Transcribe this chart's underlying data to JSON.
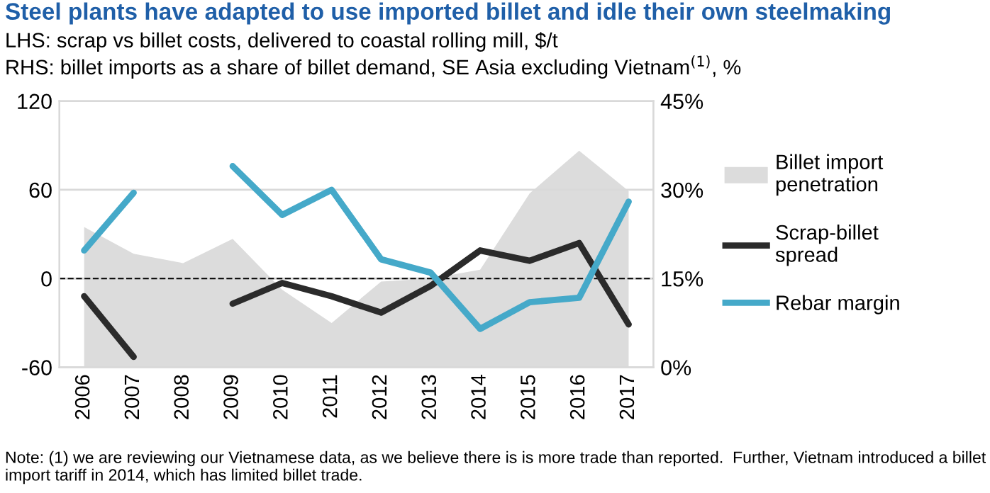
{
  "chart_data": {
    "type": "line",
    "title": "Steel plants have adapted to use imported billet and idle their own steelmaking",
    "subtitle": "LHS: scrap vs billet costs, delivered to coastal rolling mill, $/t\nRHS: billet imports as a share of billet demand, SE Asia excluding Vietnam$^{(1)}$, %",
    "categories": [
      "2006",
      "2007",
      "2008",
      "2009",
      "2010",
      "2011",
      "2012",
      "2013",
      "2014",
      "2015",
      "2016",
      "2017"
    ],
    "series": [
      {
        "name": "Billet import penetration",
        "type": "area",
        "axis": "y2",
        "color": "#dcdcdc",
        "values": [
          23.7,
          19.2,
          17.6,
          21.7,
          13.1,
          7.5,
          14.5,
          15,
          16.5,
          29.4,
          36.6,
          29.8
        ]
      },
      {
        "name": "Scrap-billet spread",
        "color": "#2b2b2b",
        "values": [
          -12,
          -53,
          null,
          -17,
          -3,
          -12,
          -23,
          -5,
          19,
          12,
          24,
          -31
        ]
      },
      {
        "name": "Rebar margin",
        "color": "#45a9c9",
        "values": [
          19,
          58,
          null,
          76,
          43,
          60,
          13,
          4,
          -34,
          -16,
          -13,
          52
        ]
      }
    ],
    "ylim": [
      -60,
      120
    ],
    "yticks": [
      -60,
      0,
      60,
      120
    ],
    "y2lim": [
      0,
      45
    ],
    "y2ticks": [
      {
        "value": 0,
        "label": "0%"
      },
      {
        "value": 15,
        "label": "15%"
      },
      {
        "value": 30,
        "label": "30%"
      },
      {
        "value": 45,
        "label": "45%"
      }
    ],
    "ref_lines": [
      {
        "axis": "y",
        "value": 0,
        "color": "#000000",
        "line_style": "dashed"
      }
    ],
    "grid": "y",
    "legend": "right",
    "line_style": "solid",
    "marker": "none",
    "annotations": [
      "Note: (1) we are reviewing our Vietnamese data, as we believe there is is more trade than reported.  Further, Vietnam introduced a billet import tariff in 2014, which has limited billet trade."
    ]
  }
}
